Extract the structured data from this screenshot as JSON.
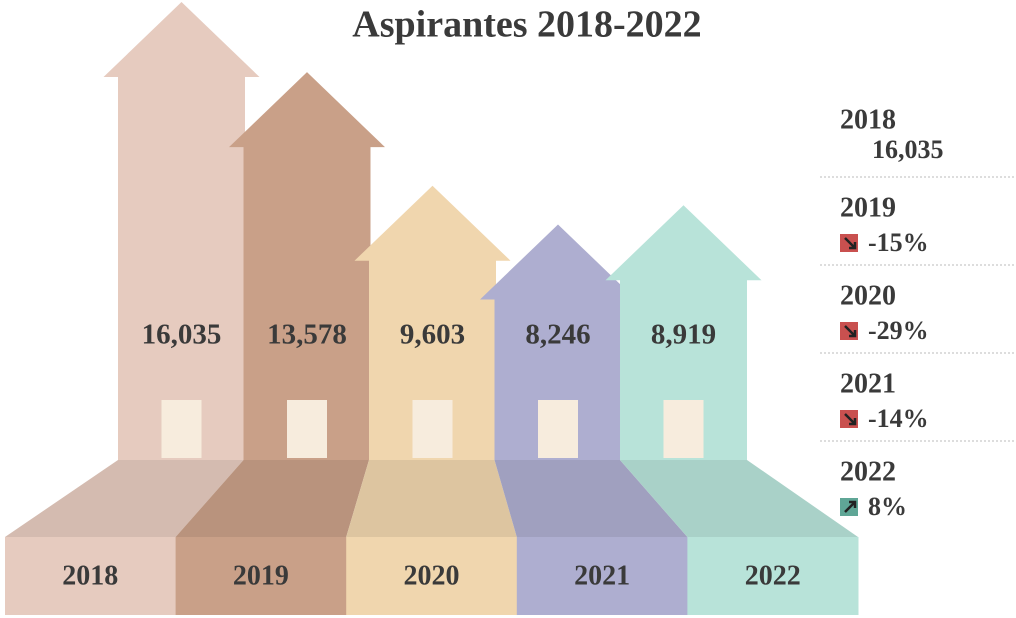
{
  "chart_data": {
    "type": "arrow",
    "title": "Aspirantes 2018-2022",
    "categories": [
      "2018",
      "2019",
      "2020",
      "2021",
      "2022"
    ],
    "values": [
      16035,
      13578,
      9603,
      8246,
      8919
    ],
    "value_labels": [
      "16,035",
      "13,578",
      "9,603",
      "8,246",
      "8,919"
    ],
    "colors": [
      "#e6cbbf",
      "#c9a088",
      "#f0d6ae",
      "#aeaed0",
      "#b8e3d9"
    ],
    "changes": [
      null,
      -15,
      -29,
      -14,
      8
    ],
    "change_labels": [
      null,
      "-15%",
      "-29%",
      "-14%",
      "8%"
    ],
    "down_color": "#c9504f",
    "up_color": "#5fa696"
  }
}
